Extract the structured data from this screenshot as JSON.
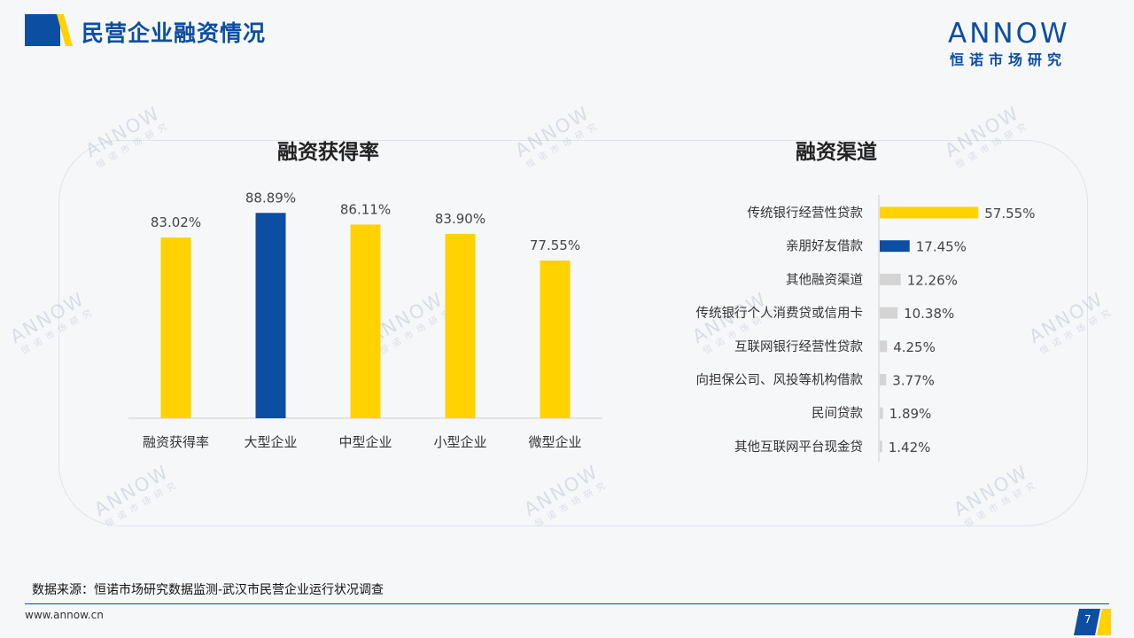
{
  "header": {
    "title": "民营企业融资情况",
    "brand_word": "ANNOW",
    "brand_sub": "恒诺市场研究"
  },
  "colors": {
    "brand_blue": "#0b4ea2",
    "accent_yellow": "#ffd200",
    "grey_bar": "#d4d4d4"
  },
  "watermark": {
    "word": "ANNOW",
    "sub": "恒诺市场研究"
  },
  "chart_data": [
    {
      "type": "bar",
      "title": "融资获得率",
      "categories": [
        "融资获得率",
        "大型企业",
        "中型企业",
        "小型企业",
        "微型企业"
      ],
      "values": [
        83.02,
        88.89,
        86.11,
        83.9,
        77.55
      ],
      "value_labels": [
        "83.02%",
        "88.89%",
        "86.11%",
        "83.90%",
        "77.55%"
      ],
      "highlight": "大型企业",
      "ylim": [
        40,
        90
      ],
      "grid": false,
      "legend": "none"
    },
    {
      "type": "bar",
      "orientation": "horizontal",
      "title": "融资渠道",
      "categories": [
        "传统银行经营性贷款",
        "亲朋好友借款",
        "其他融资渠道",
        "传统银行个人消费贷或信用卡",
        "互联网银行经营性贷款",
        "向担保公司、风投等机构借款",
        "民间贷款",
        "其他互联网平台现金贷"
      ],
      "values": [
        57.55,
        17.45,
        12.26,
        10.38,
        4.25,
        3.77,
        1.89,
        1.42
      ],
      "value_labels": [
        "57.55%",
        "17.45%",
        "12.26%",
        "10.38%",
        "4.25%",
        "3.77%",
        "1.89%",
        "1.42%"
      ],
      "xlim": [
        0,
        60
      ],
      "grid": false,
      "legend": "none"
    }
  ],
  "footer": {
    "source": "数据来源：恒诺市场研究数据监测-武汉市民营企业运行状况调查",
    "site": "www.annow.cn",
    "page": "7"
  }
}
